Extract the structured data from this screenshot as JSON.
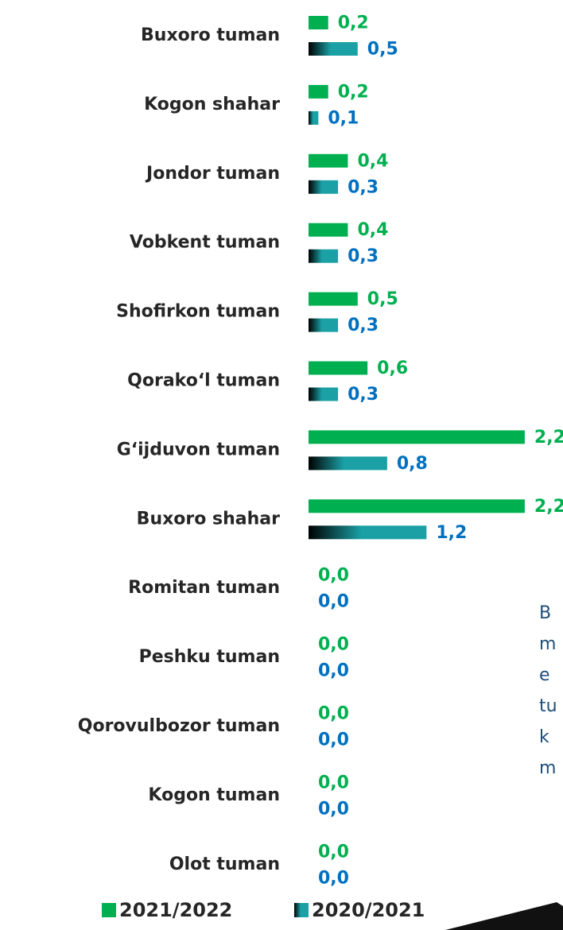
{
  "chart_data": {
    "type": "bar",
    "orientation": "horizontal",
    "categories": [
      "Buxoro tuman",
      "Kogon shahar",
      "Jondor tuman",
      "Vobkent tuman",
      "Shofirkon tuman",
      "Qorako‘l tuman",
      "G‘ijduvon tuman",
      "Buxoro shahar",
      "Romitan tuman",
      "Peshku tuman",
      "Qorovulbozor tuman",
      "Kogon tuman",
      "Olot tuman"
    ],
    "series": [
      {
        "name": "2021/2022",
        "color": "#00b050",
        "label_color": "#00b050",
        "values": [
          0.2,
          0.2,
          0.4,
          0.4,
          0.5,
          0.6,
          2.2,
          2.2,
          0,
          0,
          0,
          0,
          0
        ],
        "value_labels": [
          "0,2",
          "0,2",
          "0,4",
          "0,4",
          "0,5",
          "0,6",
          "2,2",
          "2,2",
          "0,0",
          "0,0",
          "0,0",
          "0,0",
          "0,0"
        ]
      },
      {
        "name": "2020/2021",
        "color": "#1aa0a5",
        "label_color": "#0070c0",
        "values": [
          0.5,
          0.1,
          0.3,
          0.3,
          0.3,
          0.3,
          0.8,
          1.2,
          0,
          0,
          0,
          0,
          0
        ],
        "value_labels": [
          "0,5",
          "0,1",
          "0,3",
          "0,3",
          "0,3",
          "0,3",
          "0,8",
          "1,2",
          "0,0",
          "0,0",
          "0,0",
          "0,0",
          "0,0"
        ]
      }
    ],
    "xlim": [
      0,
      2.5
    ],
    "legend": "bottom",
    "side_text": [
      "B",
      "m",
      "e",
      "tu",
      "k",
      "m"
    ]
  }
}
